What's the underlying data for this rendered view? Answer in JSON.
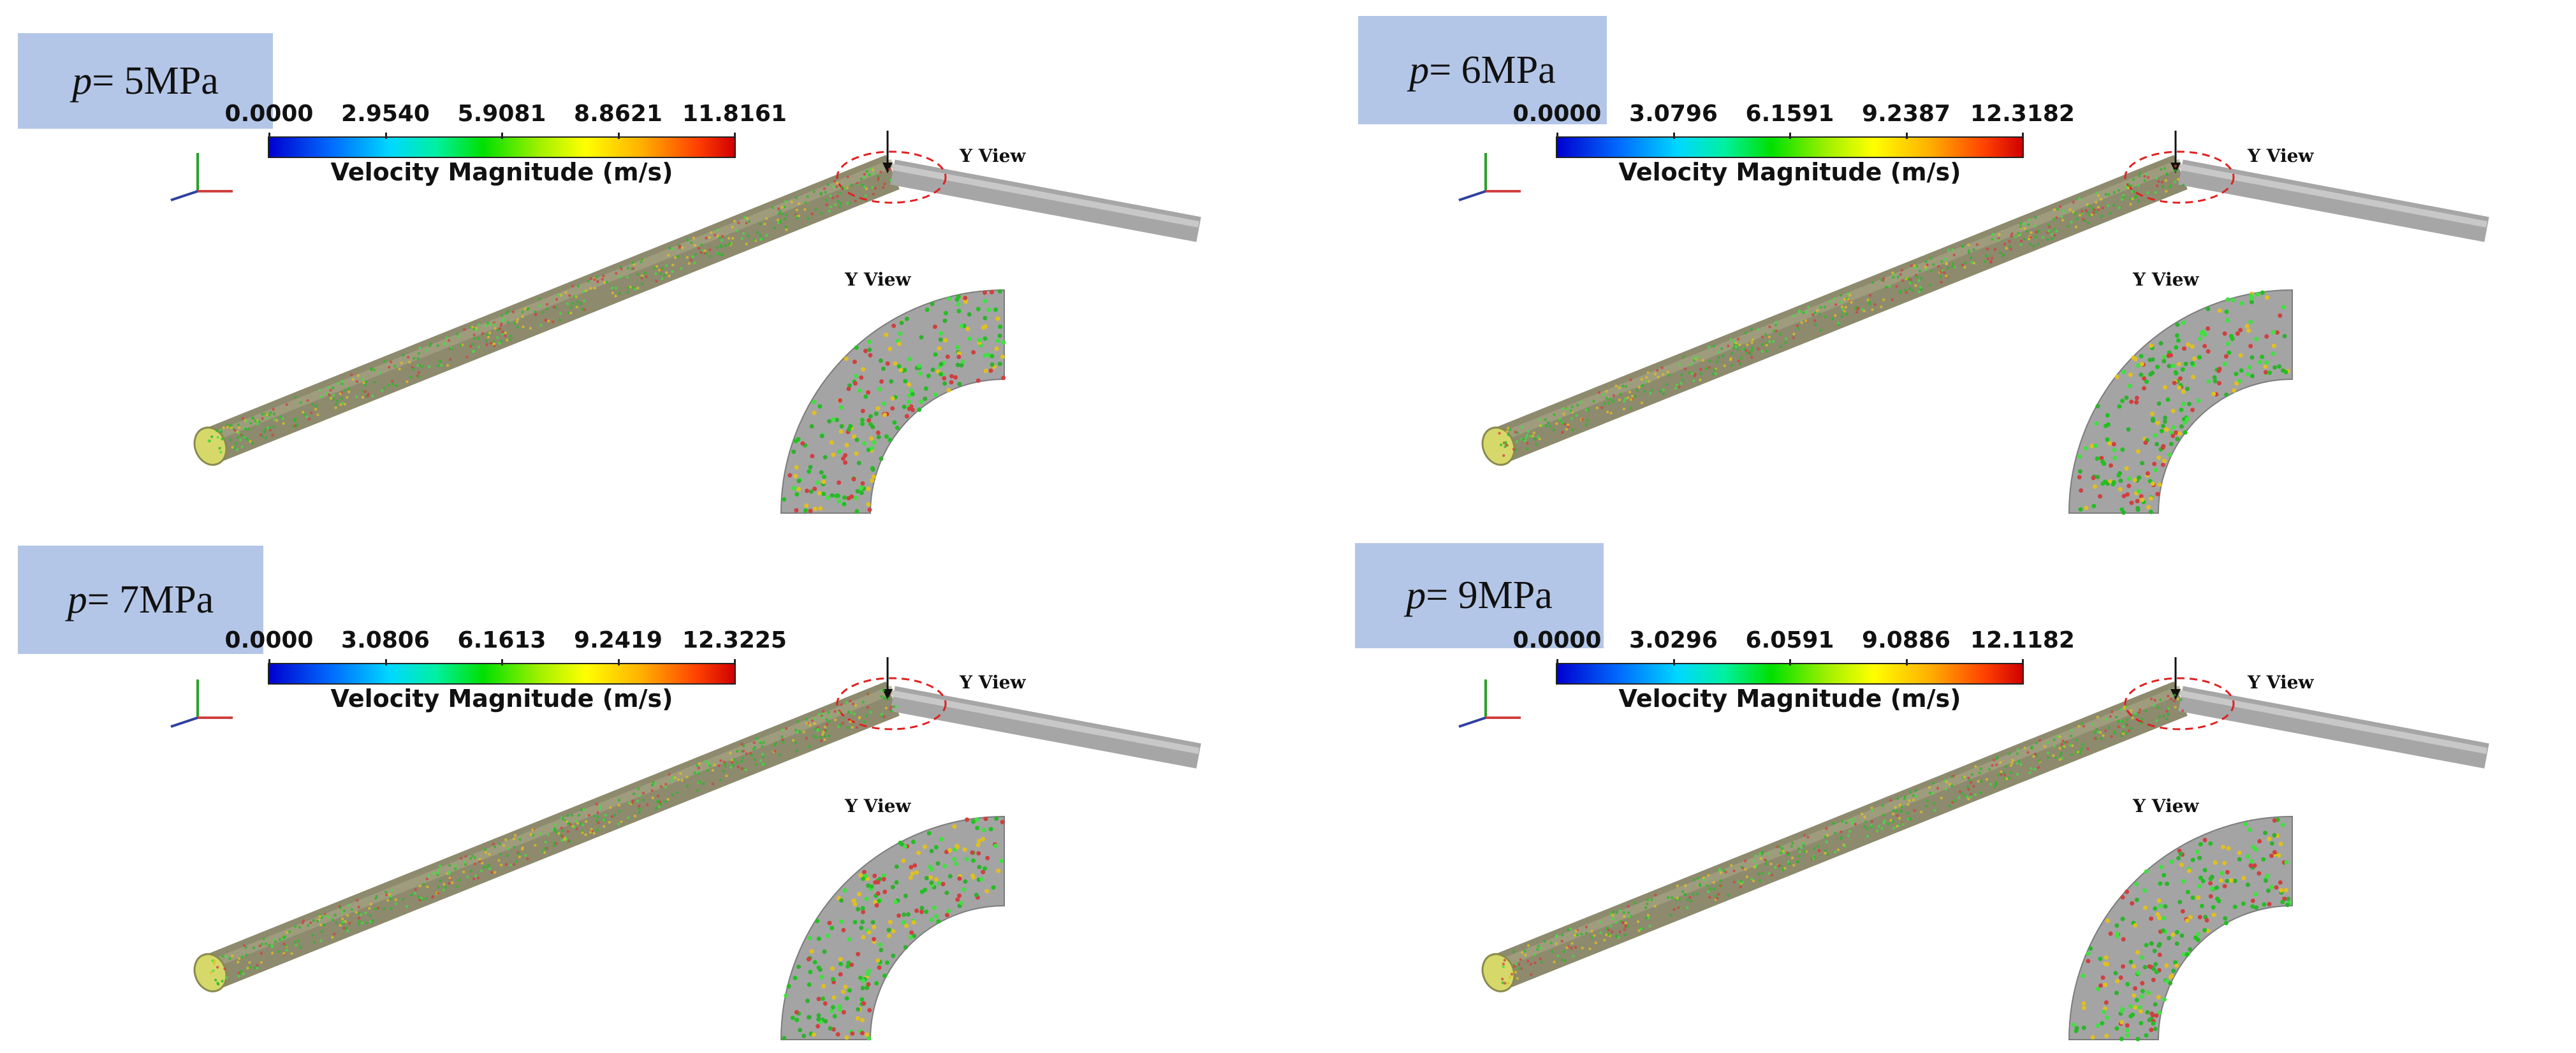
{
  "legend_title": "Velocity Magnitude (m/s)",
  "view_label": "Y View",
  "colors": {
    "label_bg": "#b4c6e7",
    "pipe": "#8d8a6e",
    "cutaway": "#9e9e9e",
    "marker": "#e02020"
  },
  "panels": [
    {
      "p_symbol": "p",
      "p_value": " = 5MPa",
      "ticks": [
        "0.0000",
        "2.9540",
        "5.9081",
        "8.8621",
        "11.8161"
      ]
    },
    {
      "p_symbol": "p",
      "p_value": " = 6MPa",
      "ticks": [
        "0.0000",
        "3.0796",
        "6.1591",
        "9.2387",
        "12.3182"
      ]
    },
    {
      "p_symbol": "p",
      "p_value": " = 7MPa",
      "ticks": [
        "0.0000",
        "3.0806",
        "6.1613",
        "9.2419",
        "12.3225"
      ]
    },
    {
      "p_symbol": "p",
      "p_value": " = 9MPa",
      "ticks": [
        "0.0000",
        "3.0296",
        "6.0591",
        "9.0886",
        "12.1182"
      ]
    }
  ]
}
